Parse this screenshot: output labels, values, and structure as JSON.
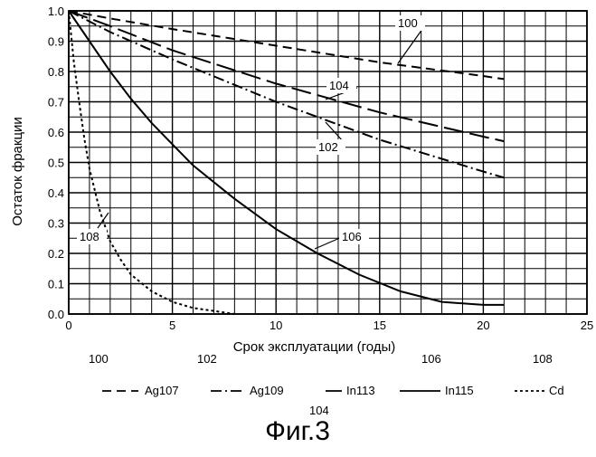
{
  "chart_data": {
    "type": "line",
    "xlabel": "Срок эксплуатации (годы)",
    "ylabel": "Остаток фракции",
    "xlim": [
      0,
      25
    ],
    "ylim": [
      0.0,
      1.0
    ],
    "x_ticks": [
      "0",
      "5",
      "10",
      "15",
      "20",
      "25"
    ],
    "y_ticks": [
      "0.0",
      "0.1",
      "0.2",
      "0.3",
      "0.4",
      "0.5",
      "0.6",
      "0.7",
      "0.8",
      "0.9",
      "1.0"
    ],
    "grid": true,
    "series": [
      {
        "id": "100",
        "name": "Ag107",
        "style": "dashed",
        "x": [
          0,
          2,
          5,
          10,
          15,
          20,
          21
        ],
        "y": [
          1.0,
          0.975,
          0.94,
          0.885,
          0.83,
          0.785,
          0.775
        ]
      },
      {
        "id": "102",
        "name": "Ag109",
        "style": "dash-dot",
        "x": [
          0,
          2,
          5,
          10,
          15,
          20,
          21
        ],
        "y": [
          1.0,
          0.93,
          0.84,
          0.7,
          0.575,
          0.47,
          0.45
        ]
      },
      {
        "id": "104",
        "name": "In113",
        "style": "long-dash",
        "x": [
          0,
          2,
          5,
          10,
          15,
          20,
          21
        ],
        "y": [
          1.0,
          0.95,
          0.87,
          0.76,
          0.665,
          0.585,
          0.57
        ]
      },
      {
        "id": "106",
        "name": "In115",
        "style": "solid",
        "x": [
          0,
          1,
          2,
          3,
          4,
          5,
          6,
          8,
          10,
          12,
          14,
          16,
          18,
          20,
          21
        ],
        "y": [
          1.0,
          0.9,
          0.8,
          0.71,
          0.63,
          0.56,
          0.49,
          0.38,
          0.28,
          0.2,
          0.13,
          0.075,
          0.04,
          0.03,
          0.03
        ]
      },
      {
        "id": "108",
        "name": "Cd",
        "style": "dotted",
        "x": [
          0,
          0.25,
          0.5,
          0.75,
          1.0,
          1.5,
          2.0,
          2.5,
          3.0,
          4.0,
          5.0,
          6.0,
          7.0,
          8.0
        ],
        "y": [
          1.0,
          0.83,
          0.7,
          0.58,
          0.48,
          0.34,
          0.24,
          0.18,
          0.13,
          0.075,
          0.04,
          0.02,
          0.01,
          0.0
        ]
      }
    ],
    "curve_labels": [
      {
        "series": "100",
        "text": "100"
      },
      {
        "series": "104",
        "text": "104"
      },
      {
        "series": "102",
        "text": "102"
      },
      {
        "series": "106",
        "text": "106"
      },
      {
        "series": "108",
        "text": "108"
      }
    ]
  },
  "legend": [
    {
      "id": "100",
      "label": "Ag107",
      "style": "dashed"
    },
    {
      "id": "102",
      "label": "Ag109",
      "style": "dash-dot"
    },
    {
      "id": "104",
      "label": "In113",
      "style": "long-dash"
    },
    {
      "id": "106",
      "label": "In115",
      "style": "solid"
    },
    {
      "id": "108",
      "label": "Cd",
      "style": "dotted"
    }
  ],
  "figure_caption": "Фиг.3"
}
